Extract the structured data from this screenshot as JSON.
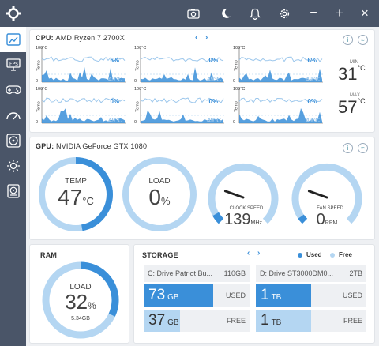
{
  "titlebar": {
    "minimize": "−",
    "maximize": "+",
    "close": "×"
  },
  "cpu": {
    "label": "CPU:",
    "name": "AMD Ryzen 7 2700X",
    "cores": [
      {
        "load": "6%",
        "temp": "49°C"
      },
      {
        "load": "0%",
        "temp": "49°C"
      },
      {
        "load": "6%",
        "temp": "49°C"
      },
      {
        "load": "0%",
        "temp": "49°C"
      },
      {
        "load": "0%",
        "temp": "49°C"
      },
      {
        "load": "0%",
        "temp": "49°C"
      }
    ],
    "axis_top": "100°C",
    "axis_label": "Temp",
    "axis_bottom": "0",
    "min_label": "MIN",
    "min_value": "31",
    "max_label": "MAX",
    "max_value": "57",
    "unit": "°C"
  },
  "gpu": {
    "label": "GPU:",
    "name": "NVIDIA GeForce GTX 1080",
    "temp": {
      "label": "TEMP",
      "value": "47",
      "unit": "°C",
      "fraction": 0.47
    },
    "load": {
      "label": "LOAD",
      "value": "0",
      "unit": "%",
      "fraction": 0.0
    },
    "clock": {
      "label": "CLOCK SPEED",
      "value": "139",
      "unit": "MHz",
      "fraction": 0.06
    },
    "fan": {
      "label": "FAN SPEED",
      "value": "0",
      "unit": "RPM",
      "fraction": 0.0
    }
  },
  "ram": {
    "title": "RAM",
    "label": "LOAD",
    "value": "32",
    "unit": "%",
    "sub": "5.34GB",
    "fraction": 0.32
  },
  "storage": {
    "title": "STORAGE",
    "legend_used": "Used",
    "legend_free": "Free",
    "drives": [
      {
        "name": "C: Drive Patriot Bu...",
        "size": "110GB",
        "used": "73",
        "used_unit": "GB",
        "free": "37",
        "free_unit": "GB",
        "used_frac": 0.66,
        "free_frac": 0.34
      },
      {
        "name": "D: Drive ST3000DM0...",
        "size": "2TB",
        "used": "1",
        "used_unit": "TB",
        "free": "1",
        "free_unit": "TB",
        "used_frac": 0.5,
        "free_frac": 0.5
      }
    ],
    "used_label": "USED",
    "free_label": "FREE"
  },
  "colors": {
    "accent": "#3a8fd9",
    "light": "#b4d6f2",
    "sidebar": "#4a5568"
  }
}
